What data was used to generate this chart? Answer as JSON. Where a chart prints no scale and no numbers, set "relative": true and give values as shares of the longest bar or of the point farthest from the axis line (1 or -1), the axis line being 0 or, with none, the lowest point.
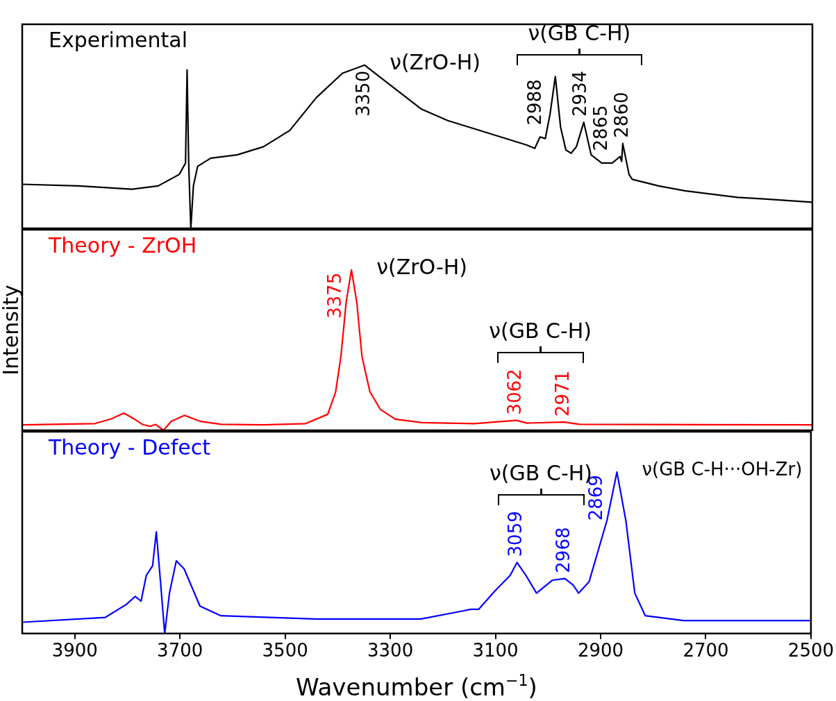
{
  "chart_data": [
    {
      "type": "line",
      "title": "Experimental",
      "relative": true,
      "color": "#000000",
      "xlim": [
        4000,
        2500
      ],
      "xticks": [
        3900,
        3700,
        3500,
        3300,
        3100,
        2900,
        2700,
        2500
      ],
      "tick_labels": false,
      "x": [
        4000,
        3892,
        3792,
        3742,
        3702,
        3690,
        3687,
        3684,
        3680,
        3675,
        3667,
        3642,
        3592,
        3542,
        3492,
        3442,
        3392,
        3350,
        3322,
        3282,
        3242,
        3192,
        3142,
        3092,
        3042,
        3027,
        3017,
        3007,
        2998,
        2988,
        2978,
        2968,
        2958,
        2948,
        2934,
        2920,
        2900,
        2880,
        2865,
        2862,
        2860,
        2848,
        2842,
        2792,
        2742,
        2642,
        2592,
        2500
      ],
      "values": [
        0.27,
        0.26,
        0.24,
        0.26,
        0.33,
        0.4,
        0.97,
        0.4,
        0,
        0.26,
        0.38,
        0.43,
        0.45,
        0.5,
        0.6,
        0.8,
        0.95,
        1,
        0.93,
        0.83,
        0.73,
        0.66,
        0.61,
        0.56,
        0.51,
        0.49,
        0.56,
        0.55,
        0.7,
        0.93,
        0.62,
        0.48,
        0.46,
        0.5,
        0.65,
        0.45,
        0.4,
        0.4,
        0.44,
        0.41,
        0.52,
        0.33,
        0.3,
        0.26,
        0.23,
        0.19,
        0.18,
        0.16
      ],
      "annotations": [
        {
          "text": "3350",
          "x": 3350,
          "y": 1
        },
        {
          "text": "2988",
          "x": 2988,
          "y": 0.93
        },
        {
          "text": "2934",
          "x": 2934,
          "y": 0.65
        },
        {
          "text": "2865",
          "x": 2865,
          "y": 0.44
        },
        {
          "text": "2860",
          "x": 2860,
          "y": 0.52
        },
        {
          "text": "ν(ZrO-H)",
          "x": 3350,
          "y": 1
        },
        "ν(GB C-H)"
      ]
    },
    {
      "type": "line",
      "title": "Theory - ZrOH",
      "relative": true,
      "color": "#ff0000",
      "xlim": [
        4000,
        2500
      ],
      "xticks": [
        3900,
        3700,
        3500,
        3300,
        3100,
        2900,
        2700,
        2500
      ],
      "tick_labels": false,
      "ylabel": "Intensity",
      "x": [
        4000,
        3862,
        3832,
        3807,
        3787,
        3772,
        3757,
        3747,
        3732,
        3717,
        3692,
        3662,
        3622,
        3542,
        3462,
        3420,
        3405,
        3395,
        3385,
        3375,
        3365,
        3355,
        3340,
        3320,
        3292,
        3242,
        3142,
        3062,
        3042,
        2971,
        2942,
        2500
      ],
      "values": [
        0.034,
        0.042,
        0.07,
        0.107,
        0.07,
        0.037,
        0.025,
        0.037,
        0,
        0.056,
        0.093,
        0.056,
        0.037,
        0.034,
        0.042,
        0.1,
        0.24,
        0.46,
        0.8,
        1,
        0.8,
        0.46,
        0.24,
        0.13,
        0.07,
        0.048,
        0.042,
        0.062,
        0.045,
        0.051,
        0.037,
        0.034
      ],
      "annotations": [
        {
          "text": "3375",
          "x": 3375,
          "y": 1
        },
        {
          "text": "3062",
          "x": 3062,
          "y": 0.062
        },
        {
          "text": "2971",
          "x": 2971,
          "y": 0.051
        },
        {
          "text": "ν(ZrO-H)",
          "x": 3375,
          "y": 1
        },
        "ν(GB C-H)"
      ]
    },
    {
      "type": "line",
      "title": "Theory - Defect",
      "relative": true,
      "color": "#0000ff",
      "xlim": [
        4000,
        2500
      ],
      "xticks": [
        3900,
        3700,
        3500,
        3300,
        3100,
        2900,
        2700,
        2500
      ],
      "xlabel": "Wavenumber (cm$^{−1}$)",
      "x": [
        4000,
        3842,
        3802,
        3785,
        3774,
        3764,
        3752,
        3745,
        3737,
        3729,
        3720,
        3707,
        3692,
        3662,
        3622,
        3442,
        3242,
        3162,
        3147,
        3132,
        3102,
        3072,
        3059,
        3042,
        3022,
        2992,
        2968,
        2952,
        2942,
        2922,
        2888,
        2869,
        2852,
        2835,
        2815,
        2742,
        2500
      ],
      "values": [
        0.07,
        0.1,
        0.18,
        0.23,
        0.2,
        0.36,
        0.42,
        0.63,
        0.32,
        0,
        0.25,
        0.45,
        0.4,
        0.17,
        0.11,
        0.09,
        0.09,
        0.14,
        0.15,
        0.15,
        0.26,
        0.36,
        0.44,
        0.36,
        0.25,
        0.33,
        0.34,
        0.3,
        0.25,
        0.32,
        0.7,
        1,
        0.7,
        0.25,
        0.11,
        0.08,
        0.08
      ],
      "annotations": [
        {
          "text": "3059",
          "x": 3059,
          "y": 0.44
        },
        {
          "text": "2968",
          "x": 2968,
          "y": 0.34
        },
        {
          "text": "2869",
          "x": 2869,
          "y": 1
        },
        {
          "text": "ν(GB C-H···OH-Zr)",
          "x": 2869,
          "y": 1
        },
        "ν(GB C-H)"
      ]
    }
  ]
}
